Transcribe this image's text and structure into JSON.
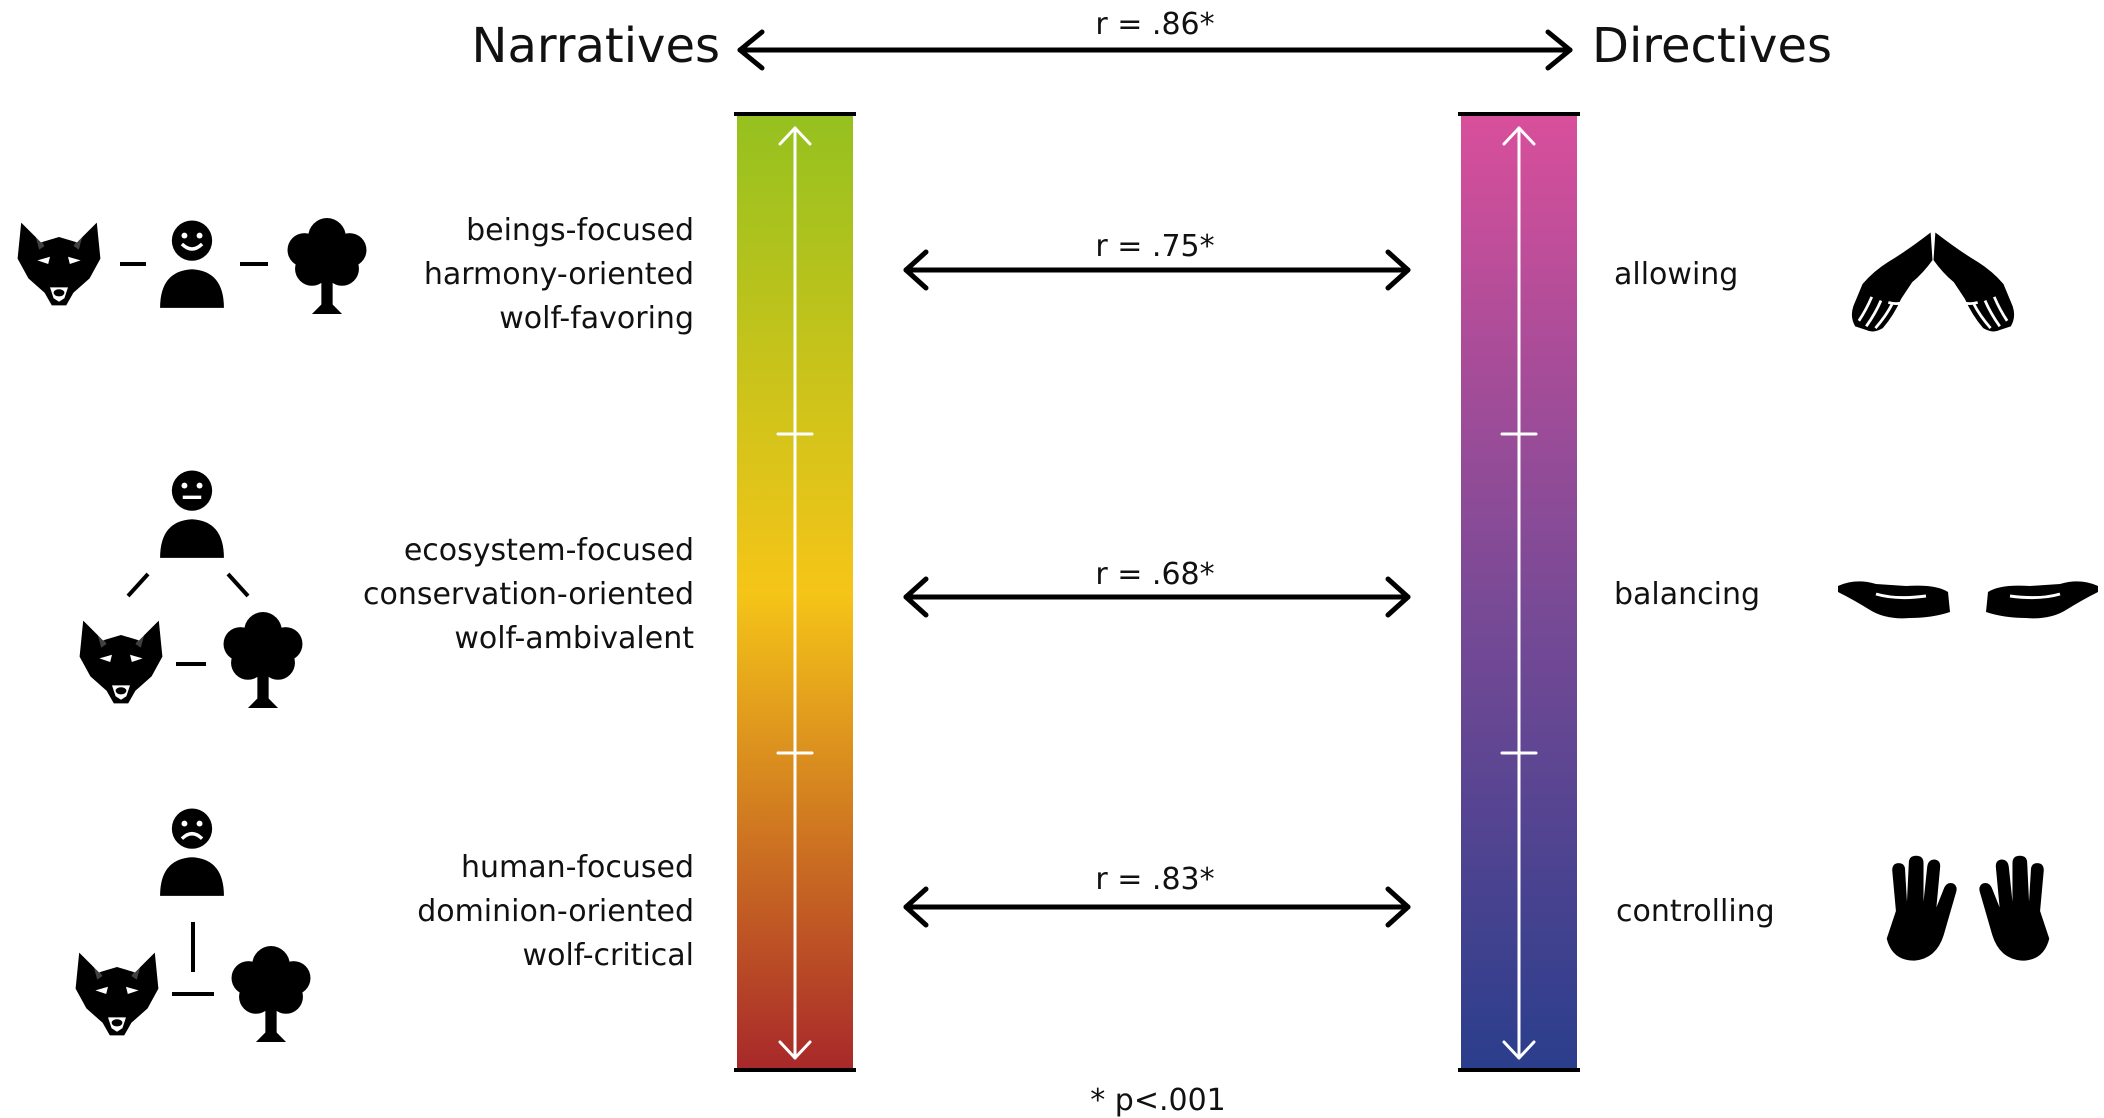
{
  "headers": {
    "left": "Narratives",
    "right": "Directives"
  },
  "correlations": {
    "overall": "r = .86*",
    "top": "r = .75*",
    "middle": "r = .68*",
    "bottom": "r = .83*"
  },
  "narratives": {
    "top": [
      "beings-focused",
      "harmony-oriented",
      "wolf-favoring"
    ],
    "middle": [
      "ecosystem-focused",
      "conservation-oriented",
      "wolf-ambivalent"
    ],
    "bottom": [
      "human-focused",
      "dominion-oriented",
      "wolf-critical"
    ]
  },
  "directives": {
    "top": "allowing",
    "middle": "balancing",
    "bottom": "controlling"
  },
  "footnote": "* p<.001",
  "colors": {
    "narrative_gradient": [
      "#95c11f",
      "#f5c518",
      "#a8282a"
    ],
    "directive_gradient": [
      "#d94f9b",
      "#7b4a96",
      "#2a3e8c"
    ]
  },
  "icons": [
    "wolf-icon",
    "person-icon",
    "tree-icon",
    "open-hands-icon",
    "level-hands-icon",
    "raised-hands-icon"
  ]
}
